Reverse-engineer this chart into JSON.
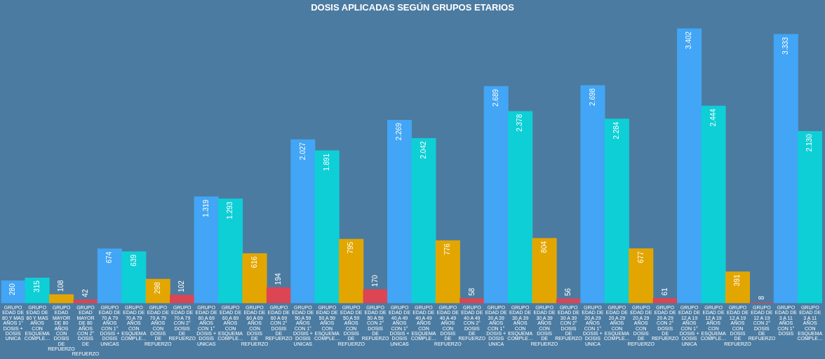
{
  "chart_data": {
    "type": "bar",
    "title": "DOSIS APLICADAS SEGÚN GRUPOS ETARIOS",
    "categories": [
      "GRUPO EDAD DE 80 Y MAS AÑOS 1° DOSIS + DOSIS UNICA",
      "GRUPO EDAD DE 80 Y MAS AÑOS CON ESQUEMA COMPLE…",
      "GRUPO EDAD MAYOR DE 80 AÑOS CON DOSIS DE REFUERZO",
      "GRUPO EDAD MAYOR DE 80 AÑOS CON 2° DOSIS DE REFUERZO",
      "GRUPO EDAD DE 70 A 79 AÑOS CON 1° DOSIS + DOSIS UNICAS",
      "GRUPO EDAD DE 70 A 79 AÑOS CON ESQUEMA COMPLE…",
      "GRUPO EDAD DE 70 A 79 AÑOS CON DOSIS DE REFUERZO",
      "GRUPO EDAD DE 70 A 79 CON 2° DOSIS DE REFUERZO",
      "GRUPO EDAD DE 60 A 69 AÑOS CON 1° DOSIS + DOSIS UNICAS",
      "GRUPO EDAD DE 60 A 69 AÑOS CON ESQUEMA COMPLE…",
      "GRUPO EDAD DE 60 A 69 AÑOS CON DOSIS DE REFUERZO",
      "GRUPO EDAD DE 60 A 69 CON 2° DOSIS DE REFUERZO",
      "GRUPO EDAD DE 50 A 59 AÑOS CON 1° DOSIS + DOSIS UNICAS",
      "GRUPO EDAD DE 50 A 59 AÑOS CON ESQUEMA COMPLE…",
      "GRUPO EDAD DE 50 A 59 AÑOS CON DOSIS DE REFUERZO",
      "GRUPO EDAD DE 50 A 59 CON 2° DOSIS DE REFUERZO",
      "GRUPO EDAD DE 40 A 49 AÑOS CON 1° DOSIS + DOSIS UNICAS",
      "GRUPO EDAD DE 40 A 49 AÑOS CON ESQUEMA COMPLE…",
      "GRUPO EDAD DE 40 A 49 AÑOS CON DOSIS DE REFUERZO",
      "GRUPO EDAD DE 40 A 49 CON 2° DOSIS DE REFUERZO",
      "GRUPO EDAD DE 30 A 39 AÑOS CON 1° DOSIS + DOSIS UNICA",
      "GRUPO EDAD DE 30 A 39 AÑOS CON ESQUEMA COMPLE…",
      "GRUPO EDAD DE 30 A 39 AÑOS CON DOSIS DE REFUERZO",
      "GRUPO EDAD DE 30 A 39 CON 2° DOSIS DE REFUERZO",
      "GRUPO EDAD DE 20 A 29 AÑOS CON 1° DOSIS + DOSIS UNICA",
      "GRUPO EDAD DE 20 A 29 AÑOS CON ESQUEMA COMPLE…",
      "GRUPO EDAD DE 20 A 29 AÑOS CON DOSIS DE REFUERZO",
      "GRUPO EDAD DE 20 A 29 CON 2° DOSIS DE REFUERZO",
      "GRUPO EDAD DE 12 A 19 AÑOS CON 1° DOSIS + DOSIS UNICA",
      "GRUPO EDAD DE 12 A 19 AÑOS CON ESQUEMA COMPLE…",
      "GRUPO EDAD DE 12 A 19 AÑOS CON DOSIS DE REFUERZO",
      "GRUPO EDAD DE 12 A 19 CON 2° DOSIS DE REFUERZO",
      "GRUPO EDAD DE 3 A 11 AÑOS CON 1° DOSIS",
      "GRUPO EDAD DE 3 A 11 AÑOS CON ESQUEMA COMPLE…"
    ],
    "values": [
      280,
      315,
      108,
      42,
      674,
      639,
      298,
      102,
      1319,
      1293,
      616,
      194,
      2027,
      1891,
      795,
      170,
      2269,
      2042,
      776,
      58,
      2689,
      2378,
      804,
      56,
      2698,
      2284,
      677,
      61,
      3402,
      2444,
      391,
      8,
      3333,
      2130
    ],
    "value_labels": [
      "280",
      "315",
      "108",
      "42",
      "674",
      "639",
      "298",
      "102",
      "1.319",
      "1.293",
      "616",
      "194",
      "2.027",
      "1.891",
      "795",
      "170",
      "2.269",
      "2.042",
      "776",
      "58",
      "2.689",
      "2.378",
      "804",
      "56",
      "2.698",
      "2.284",
      "677",
      "61",
      "3.402",
      "2.444",
      "391",
      "8",
      "3.333",
      "2.130"
    ],
    "colors": [
      "#42a5f5",
      "#0ecfd6",
      "#e3a600",
      "#dc4553",
      "#42a5f5",
      "#0ecfd6",
      "#e3a600",
      "#dc4553",
      "#42a5f5",
      "#0ecfd6",
      "#e3a600",
      "#dc4553",
      "#42a5f5",
      "#0ecfd6",
      "#e3a600",
      "#dc4553",
      "#42a5f5",
      "#0ecfd6",
      "#e3a600",
      "#dc4553",
      "#42a5f5",
      "#0ecfd6",
      "#e3a600",
      "#dc4553",
      "#42a5f5",
      "#0ecfd6",
      "#e3a600",
      "#dc4553",
      "#42a5f5",
      "#0ecfd6",
      "#e3a600",
      "#dc4553",
      "#42a5f5",
      "#0ecfd6"
    ],
    "grid": false,
    "legend": false,
    "tick_labels": "x"
  }
}
